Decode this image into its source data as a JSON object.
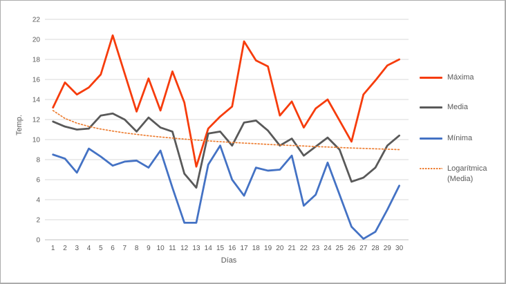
{
  "chart_data": {
    "type": "line",
    "title": "",
    "xlabel": "Días",
    "ylabel": "Temp.",
    "categories": [
      "1",
      "2",
      "3",
      "4",
      "5",
      "6",
      "7",
      "8",
      "9",
      "10",
      "11",
      "12",
      "13",
      "14",
      "15",
      "16",
      "17",
      "18",
      "19",
      "20",
      "21",
      "22",
      "23",
      "24",
      "25",
      "26",
      "27",
      "28",
      "29",
      "30"
    ],
    "ylim": [
      0,
      22
    ],
    "ytick_step": 2,
    "grid": true,
    "legend_position": "right",
    "series": [
      {
        "id": "maxima",
        "name": "Máxima",
        "color": "#f63c0c",
        "style": "solid",
        "width": 2.8,
        "values": [
          13.2,
          15.7,
          14.5,
          15.2,
          16.5,
          20.4,
          16.6,
          12.8,
          16.1,
          12.9,
          16.8,
          13.7,
          7.3,
          11.1,
          12.3,
          13.3,
          19.8,
          17.9,
          17.3,
          12.4,
          13.8,
          11.2,
          13.1,
          14.0,
          11.9,
          9.8,
          14.5,
          15.9,
          17.4,
          18.0
        ]
      },
      {
        "id": "media",
        "name": "Media",
        "color": "#595959",
        "style": "solid",
        "width": 2.8,
        "values": [
          11.8,
          11.3,
          11.0,
          11.1,
          12.4,
          12.6,
          12.0,
          10.8,
          12.2,
          11.2,
          10.8,
          6.6,
          5.2,
          10.6,
          10.8,
          9.4,
          11.7,
          11.9,
          10.9,
          9.4,
          10.1,
          8.4,
          9.3,
          10.2,
          9.0,
          5.8,
          6.2,
          7.2,
          9.4,
          10.4
        ]
      },
      {
        "id": "minima",
        "name": "Mínima",
        "color": "#4472c4",
        "style": "solid",
        "width": 2.8,
        "values": [
          8.5,
          8.1,
          6.7,
          9.1,
          8.3,
          7.4,
          7.8,
          7.9,
          7.2,
          8.9,
          5.2,
          1.7,
          1.7,
          7.5,
          9.4,
          6.0,
          4.4,
          7.2,
          6.9,
          7.0,
          8.4,
          3.4,
          4.5,
          7.7,
          4.5,
          1.3,
          0.1,
          0.8,
          3.0,
          5.4
        ]
      },
      {
        "id": "logaritmica",
        "name": "Logarítmica (Media)",
        "legend_line1": "Logarítmica",
        "legend_line2": "(Media)",
        "color": "#ed7d31",
        "style": "dotted",
        "width": 1.7,
        "values": [
          12.9,
          12.11,
          11.64,
          11.31,
          11.05,
          10.85,
          10.67,
          10.52,
          10.38,
          10.26,
          10.15,
          10.05,
          9.96,
          9.87,
          9.79,
          9.72,
          9.65,
          9.59,
          9.52,
          9.46,
          9.41,
          9.36,
          9.3,
          9.26,
          9.21,
          9.16,
          9.12,
          9.08,
          9.04,
          9.0
        ]
      }
    ]
  },
  "axes": {
    "y_ticks": [
      "22",
      "20",
      "18",
      "16",
      "14",
      "12",
      "10",
      "8",
      "6",
      "4",
      "2",
      "0"
    ]
  },
  "colors": {
    "gridline": "#d9d9d9",
    "axis_line": "#bfbfbf",
    "tick_text": "#595959",
    "background": "#ffffff",
    "border": "#ababab"
  }
}
